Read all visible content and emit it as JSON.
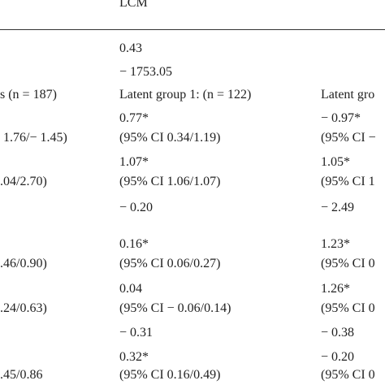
{
  "header": {
    "lcm": "LCM"
  },
  "fit": {
    "v1": "0.43",
    "v2": "− 1753.05"
  },
  "groups": {
    "left": "s (n = 187)",
    "g1": "Latent group 1: (n = 122)",
    "g2": "Latent gro"
  },
  "rows": [
    {
      "left": "1.76/− 1.45)",
      "g1_val": "0.77*",
      "g1_ci": "(95% CI 0.34/1.19)",
      "g2_val": "− 0.97*",
      "g2_ci": "(95% CI −"
    },
    {
      "left": ".04/2.70)",
      "g1_val": "1.07*",
      "g1_ci": "(95% CI 1.06/1.07)",
      "g2_val": "1.05*",
      "g2_ci": "(95% CI 1"
    },
    {
      "g1_val": "− 0.20",
      "g2_val": "− 2.49"
    },
    {
      "left": ".46/0.90)",
      "g1_val": "0.16*",
      "g1_ci": "(95% CI 0.06/0.27)",
      "g2_val": "1.23*",
      "g2_ci": "(95% CI 0"
    },
    {
      "left": ".24/0.63)",
      "g1_val": "0.04",
      "g1_ci": "(95% CI − 0.06/0.14)",
      "g2_val": "1.26*",
      "g2_ci": "(95% CI 0"
    },
    {
      "g1_val": "− 0.31",
      "g2_val": "− 0.38"
    },
    {
      "left": ".45/0.86",
      "g1_val": "0.32*",
      "g1_ci": "(95% CI 0.16/0.49)",
      "g2_val": "− 0.20",
      "g2_ci": "(95% CI 0"
    }
  ]
}
